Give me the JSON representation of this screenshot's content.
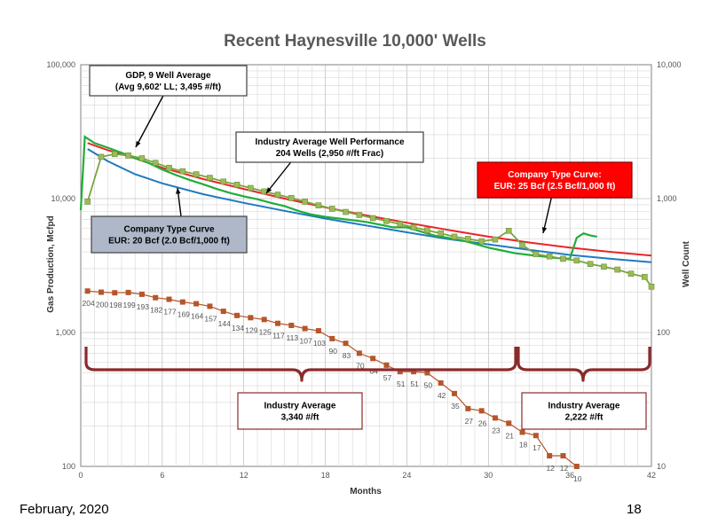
{
  "slide": {
    "footer_date": "February, 2020",
    "page_number": "18"
  },
  "chart_data": {
    "type": "line",
    "title": "Recent Haynesville 10,000' Wells",
    "xlabel": "Months",
    "ylabel_left": "Gas Production, Mcfpd",
    "ylabel_right": "Well Count",
    "x_ticks": [
      "0",
      "6",
      "12",
      "18",
      "24",
      "30",
      "36",
      "42"
    ],
    "y_left_ticks": [
      "100",
      "1,000",
      "10,000",
      "100,000"
    ],
    "y_right_ticks": [
      "10",
      "100",
      "1,000",
      "10,000"
    ],
    "xlim": [
      0,
      42
    ],
    "ylim_left": [
      100,
      100000
    ],
    "ylim_right": [
      10,
      10000
    ],
    "y_scale": "log",
    "grid": true,
    "colors": {
      "gdp": "#7ba43c",
      "gdp_marker": "#9bbb59",
      "industry": "#1fae3a",
      "company_red": "#e8262a",
      "company_blue": "#1f7ac0",
      "well_count": "#b5562a",
      "bracket": "#8b2a2a",
      "label_blue_fill": "#aeb8c9",
      "label_red_fill": "#ff0000"
    },
    "series": [
      {
        "name": "GDP, 9 Well Average",
        "axis": "left",
        "x": [
          0.5,
          1.5,
          2.5,
          3.5,
          4.5,
          5.5,
          6.5,
          7.5,
          8.5,
          9.5,
          10.5,
          11.5,
          12.5,
          13.5,
          14.5,
          15.5,
          16.5,
          17.5,
          18.5,
          19.5,
          20.5,
          21.5,
          22.5,
          23.5,
          24.5,
          25.5,
          26.5,
          27.5,
          28.5,
          29.5,
          30.5,
          31.5,
          32.5,
          33.5,
          34.5,
          35.5,
          36.5,
          37.5,
          38.5,
          39.5,
          40.5,
          41.5,
          42
        ],
        "y": [
          9500,
          20500,
          21500,
          21000,
          20000,
          18500,
          17000,
          16000,
          15200,
          14300,
          13400,
          12700,
          12000,
          11300,
          10700,
          10100,
          9500,
          8900,
          8400,
          7950,
          7550,
          7150,
          6800,
          6450,
          6100,
          5800,
          5500,
          5200,
          5000,
          4800,
          4950,
          5750,
          4500,
          3850,
          3700,
          3550,
          3450,
          3250,
          3100,
          2950,
          2750,
          2600,
          2200
        ]
      },
      {
        "name": "Industry Average Well Performance",
        "axis": "left",
        "x": [
          0,
          0.3,
          1,
          2,
          3,
          4,
          5,
          6,
          7,
          8,
          9,
          10,
          11,
          12,
          13,
          14,
          15,
          16,
          17,
          18,
          19,
          20,
          21,
          22,
          23,
          24,
          25,
          26,
          27,
          28,
          29,
          30,
          31,
          32,
          33,
          34,
          35,
          36,
          36.5,
          37,
          37.5,
          38
        ],
        "y": [
          8200,
          29000,
          26000,
          24000,
          22000,
          20000,
          18500,
          16500,
          15000,
          13800,
          12800,
          11800,
          11000,
          10400,
          9900,
          9300,
          8800,
          8100,
          7600,
          7300,
          7100,
          6900,
          6700,
          6400,
          6100,
          6100,
          5700,
          5300,
          5100,
          4900,
          4600,
          4300,
          4100,
          3900,
          3800,
          3700,
          3600,
          3550,
          5100,
          5500,
          5300,
          5200
        ]
      },
      {
        "name": "Company Type Curve: EUR: 25 Bcf (2.5 Bcf/1,000 ft)",
        "axis": "left",
        "x": [
          0.5,
          2,
          4,
          6,
          9,
          12,
          15,
          18,
          21,
          24,
          27,
          30,
          33,
          36,
          39,
          42
        ],
        "y": [
          26000,
          23000,
          20000,
          17000,
          14000,
          11800,
          10000,
          8600,
          7500,
          6600,
          5850,
          5200,
          4700,
          4300,
          4000,
          3750
        ]
      },
      {
        "name": "Company Type Curve EUR: 20 Bcf (2.0 Bcf/1,000 ft)",
        "axis": "left",
        "x": [
          0.5,
          2,
          4,
          6,
          9,
          12,
          15,
          18,
          21,
          24,
          27,
          30,
          33,
          36,
          39,
          42
        ],
        "y": [
          23500,
          19000,
          15200,
          13000,
          10800,
          9300,
          8100,
          7100,
          6300,
          5600,
          5000,
          4550,
          4150,
          3800,
          3550,
          3350
        ]
      },
      {
        "name": "Well Count",
        "axis": "right",
        "x": [
          0.5,
          1.5,
          2.5,
          3.5,
          4.5,
          5.5,
          6.5,
          7.5,
          8.5,
          9.5,
          10.5,
          11.5,
          12.5,
          13.5,
          14.5,
          15.5,
          16.5,
          17.5,
          18.5,
          19.5,
          20.5,
          21.5,
          22.5,
          23.5,
          24.5,
          25.5,
          26.5,
          27.5,
          28.5,
          29.5,
          30.5,
          31.5,
          32.5,
          33.5,
          34.5,
          35.5,
          36.5
        ],
        "y": [
          204,
          200,
          198,
          199,
          193,
          182,
          177,
          169,
          164,
          157,
          144,
          134,
          129,
          125,
          117,
          113,
          107,
          103,
          90,
          83,
          70,
          64,
          57,
          51,
          51,
          50,
          42,
          35,
          27,
          26,
          23,
          21,
          18,
          17,
          12,
          12,
          10
        ],
        "labels": [
          "204",
          "200",
          "198",
          "199",
          "193",
          "182",
          "177",
          "169",
          "164",
          "157",
          "144",
          "134",
          "129",
          "125",
          "117",
          "113",
          "107",
          "103",
          "90",
          "83",
          "70",
          "64",
          "57",
          "51",
          "51",
          "50",
          "42",
          "35",
          "27",
          "26",
          "23",
          "21",
          "18",
          "17",
          "12",
          "12",
          "10"
        ]
      }
    ],
    "annotations": {
      "gdp_line1": "GDP, 9 Well Average",
      "gdp_line2": "(Avg 9,602' LL; 3,495 #/ft)",
      "industry_line1": "Industry Average Well Performance",
      "industry_line2": "204 Wells (2,950 #/ft Frac)",
      "red_line1": "Company Type Curve:",
      "red_line2": "EUR: 25 Bcf (2.5 Bcf/1,000  ft)",
      "blue_line1": "Company Type Curve",
      "blue_line2": "EUR: 20 Bcf (2.0 Bcf/1,000  ft)",
      "ind1_line1": "Industry Average",
      "ind1_line2": "3,340 #/ft",
      "ind2_line1": "Industry Average",
      "ind2_line2": "2,222 #/ft"
    }
  }
}
